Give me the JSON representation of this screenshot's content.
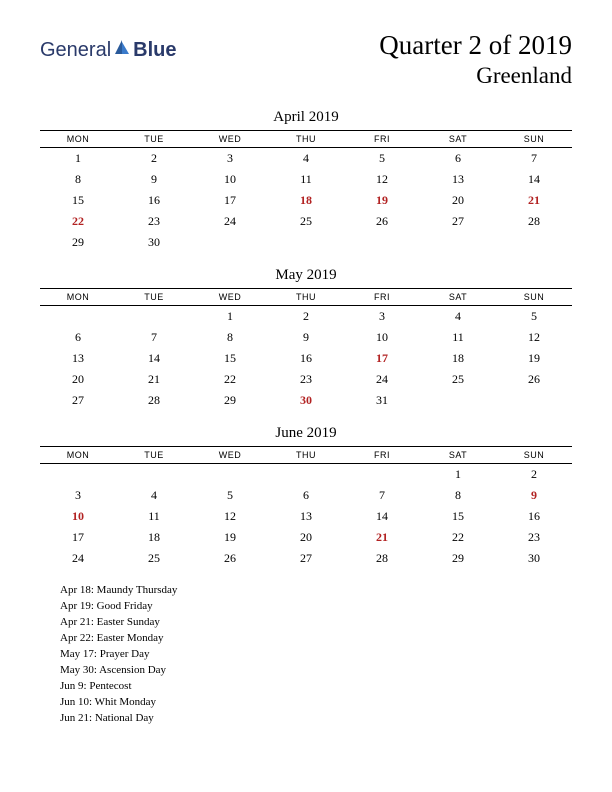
{
  "logo": {
    "general": "General",
    "blue": "Blue"
  },
  "title": {
    "main": "Quarter 2 of 2019",
    "sub": "Greenland"
  },
  "weekdays": [
    "MON",
    "TUE",
    "WED",
    "THU",
    "FRI",
    "SAT",
    "SUN"
  ],
  "colors": {
    "holiday": "#b22222",
    "text": "#000000",
    "background": "#ffffff",
    "logo": "#2a3a6a"
  },
  "months": [
    {
      "title": "April 2019",
      "weeks": [
        [
          {
            "d": "1"
          },
          {
            "d": "2"
          },
          {
            "d": "3"
          },
          {
            "d": "4"
          },
          {
            "d": "5"
          },
          {
            "d": "6"
          },
          {
            "d": "7"
          }
        ],
        [
          {
            "d": "8"
          },
          {
            "d": "9"
          },
          {
            "d": "10"
          },
          {
            "d": "11"
          },
          {
            "d": "12"
          },
          {
            "d": "13"
          },
          {
            "d": "14"
          }
        ],
        [
          {
            "d": "15"
          },
          {
            "d": "16"
          },
          {
            "d": "17"
          },
          {
            "d": "18",
            "h": true
          },
          {
            "d": "19",
            "h": true
          },
          {
            "d": "20"
          },
          {
            "d": "21",
            "h": true
          }
        ],
        [
          {
            "d": "22",
            "h": true
          },
          {
            "d": "23"
          },
          {
            "d": "24"
          },
          {
            "d": "25"
          },
          {
            "d": "26"
          },
          {
            "d": "27"
          },
          {
            "d": "28"
          }
        ],
        [
          {
            "d": "29"
          },
          {
            "d": "30"
          },
          {
            "d": ""
          },
          {
            "d": ""
          },
          {
            "d": ""
          },
          {
            "d": ""
          },
          {
            "d": ""
          }
        ]
      ]
    },
    {
      "title": "May 2019",
      "weeks": [
        [
          {
            "d": ""
          },
          {
            "d": ""
          },
          {
            "d": "1"
          },
          {
            "d": "2"
          },
          {
            "d": "3"
          },
          {
            "d": "4"
          },
          {
            "d": "5"
          }
        ],
        [
          {
            "d": "6"
          },
          {
            "d": "7"
          },
          {
            "d": "8"
          },
          {
            "d": "9"
          },
          {
            "d": "10"
          },
          {
            "d": "11"
          },
          {
            "d": "12"
          }
        ],
        [
          {
            "d": "13"
          },
          {
            "d": "14"
          },
          {
            "d": "15"
          },
          {
            "d": "16"
          },
          {
            "d": "17",
            "h": true
          },
          {
            "d": "18"
          },
          {
            "d": "19"
          }
        ],
        [
          {
            "d": "20"
          },
          {
            "d": "21"
          },
          {
            "d": "22"
          },
          {
            "d": "23"
          },
          {
            "d": "24"
          },
          {
            "d": "25"
          },
          {
            "d": "26"
          }
        ],
        [
          {
            "d": "27"
          },
          {
            "d": "28"
          },
          {
            "d": "29"
          },
          {
            "d": "30",
            "h": true
          },
          {
            "d": "31"
          },
          {
            "d": ""
          },
          {
            "d": ""
          }
        ]
      ]
    },
    {
      "title": "June 2019",
      "weeks": [
        [
          {
            "d": ""
          },
          {
            "d": ""
          },
          {
            "d": ""
          },
          {
            "d": ""
          },
          {
            "d": ""
          },
          {
            "d": "1"
          },
          {
            "d": "2"
          }
        ],
        [
          {
            "d": "3"
          },
          {
            "d": "4"
          },
          {
            "d": "5"
          },
          {
            "d": "6"
          },
          {
            "d": "7"
          },
          {
            "d": "8"
          },
          {
            "d": "9",
            "h": true
          }
        ],
        [
          {
            "d": "10",
            "h": true
          },
          {
            "d": "11"
          },
          {
            "d": "12"
          },
          {
            "d": "13"
          },
          {
            "d": "14"
          },
          {
            "d": "15"
          },
          {
            "d": "16"
          }
        ],
        [
          {
            "d": "17"
          },
          {
            "d": "18"
          },
          {
            "d": "19"
          },
          {
            "d": "20"
          },
          {
            "d": "21",
            "h": true
          },
          {
            "d": "22"
          },
          {
            "d": "23"
          }
        ],
        [
          {
            "d": "24"
          },
          {
            "d": "25"
          },
          {
            "d": "26"
          },
          {
            "d": "27"
          },
          {
            "d": "28"
          },
          {
            "d": "29"
          },
          {
            "d": "30"
          }
        ]
      ]
    }
  ],
  "holidays": [
    "Apr 18: Maundy Thursday",
    "Apr 19: Good Friday",
    "Apr 21: Easter Sunday",
    "Apr 22: Easter Monday",
    "May 17: Prayer Day",
    "May 30: Ascension Day",
    "Jun 9: Pentecost",
    "Jun 10: Whit Monday",
    "Jun 21: National Day"
  ]
}
